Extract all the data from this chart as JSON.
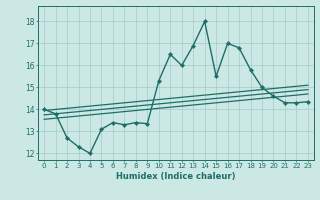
{
  "xlabel": "Humidex (Indice chaleur)",
  "xlim": [
    -0.5,
    23.5
  ],
  "ylim": [
    11.7,
    18.7
  ],
  "yticks": [
    12,
    13,
    14,
    15,
    16,
    17,
    18
  ],
  "xticks": [
    0,
    1,
    2,
    3,
    4,
    5,
    6,
    7,
    8,
    9,
    10,
    11,
    12,
    13,
    14,
    15,
    16,
    17,
    18,
    19,
    20,
    21,
    22,
    23
  ],
  "background_color": "#cce8e5",
  "grid_color": "#aacfcb",
  "line_color": "#1e6e68",
  "lines": [
    {
      "x": [
        0,
        1,
        2,
        3,
        4,
        5,
        6,
        7,
        8,
        9,
        10,
        11,
        12,
        13,
        14,
        15,
        16,
        17,
        18,
        19,
        20,
        21,
        22,
        23
      ],
      "y": [
        14.0,
        13.8,
        12.7,
        12.3,
        12.0,
        13.1,
        13.4,
        13.3,
        13.4,
        13.35,
        15.3,
        16.5,
        16.0,
        16.9,
        18.0,
        15.5,
        17.0,
        16.8,
        15.8,
        15.0,
        14.6,
        14.3,
        14.3,
        14.35
      ],
      "marker": "D",
      "markersize": 2.2,
      "linewidth": 1.0
    },
    {
      "x": [
        0,
        23
      ],
      "y": [
        13.55,
        14.7
      ],
      "marker": null,
      "linewidth": 0.9
    },
    {
      "x": [
        0,
        23
      ],
      "y": [
        13.75,
        14.9
      ],
      "marker": null,
      "linewidth": 0.9
    },
    {
      "x": [
        0,
        23
      ],
      "y": [
        13.95,
        15.1
      ],
      "marker": null,
      "linewidth": 0.9
    }
  ]
}
